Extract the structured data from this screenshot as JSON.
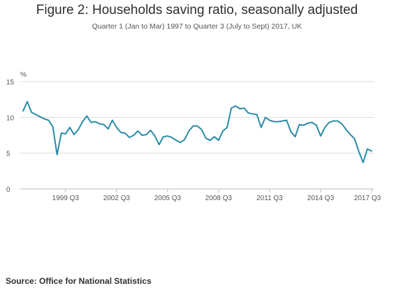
{
  "header": {
    "title": "Figure 2: Households saving ratio, seasonally adjusted",
    "subtitle": "Quarter 1 (Jan to Mar) 1997 to Quarter 3 (July to Sept) 2017, UK"
  },
  "footer": {
    "source": "Source: Office for National Statistics"
  },
  "colors": {
    "line": "#2a8ba8",
    "gridline": "#dddddd",
    "axis": "#bbbbbb"
  },
  "chart_data": {
    "type": "line",
    "title": "Figure 2: Households saving ratio, seasonally adjusted",
    "subtitle": "Quarter 1 (Jan to Mar) 1997 to Quarter 3 (July to Sept) 2017, UK",
    "ylabel": "%",
    "ylim": [
      0,
      15
    ],
    "yticks": [
      0,
      5,
      10,
      15
    ],
    "xlabels": [
      "1999 Q3",
      "2002 Q3",
      "2005 Q3",
      "2008 Q3",
      "2011 Q3",
      "2014 Q3",
      "2017 Q3"
    ],
    "grid": true,
    "x": [
      "1997 Q1",
      "1997 Q2",
      "1997 Q3",
      "1997 Q4",
      "1998 Q1",
      "1998 Q2",
      "1998 Q3",
      "1998 Q4",
      "1999 Q1",
      "1999 Q2",
      "1999 Q3",
      "1999 Q4",
      "2000 Q1",
      "2000 Q2",
      "2000 Q3",
      "2000 Q4",
      "2001 Q1",
      "2001 Q2",
      "2001 Q3",
      "2001 Q4",
      "2002 Q1",
      "2002 Q2",
      "2002 Q3",
      "2002 Q4",
      "2003 Q1",
      "2003 Q2",
      "2003 Q3",
      "2003 Q4",
      "2004 Q1",
      "2004 Q2",
      "2004 Q3",
      "2004 Q4",
      "2005 Q1",
      "2005 Q2",
      "2005 Q3",
      "2005 Q4",
      "2006 Q1",
      "2006 Q2",
      "2006 Q3",
      "2006 Q4",
      "2007 Q1",
      "2007 Q2",
      "2007 Q3",
      "2007 Q4",
      "2008 Q1",
      "2008 Q2",
      "2008 Q3",
      "2008 Q4",
      "2009 Q1",
      "2009 Q2",
      "2009 Q3",
      "2009 Q4",
      "2010 Q1",
      "2010 Q2",
      "2010 Q3",
      "2010 Q4",
      "2011 Q1",
      "2011 Q2",
      "2011 Q3",
      "2011 Q4",
      "2012 Q1",
      "2012 Q2",
      "2012 Q3",
      "2012 Q4",
      "2013 Q1",
      "2013 Q2",
      "2013 Q3",
      "2013 Q4",
      "2014 Q1",
      "2014 Q2",
      "2014 Q3",
      "2014 Q4",
      "2015 Q1",
      "2015 Q2",
      "2015 Q3",
      "2015 Q4",
      "2016 Q1",
      "2016 Q2",
      "2016 Q3",
      "2016 Q4",
      "2017 Q1",
      "2017 Q2",
      "2017 Q3"
    ],
    "series": [
      {
        "values": [
          10.9,
          12.2,
          10.7,
          10.4,
          10.1,
          9.8,
          9.6,
          8.7,
          4.8,
          7.8,
          7.7,
          8.6,
          7.6,
          8.3,
          9.4,
          10.2,
          9.3,
          9.4,
          9.1,
          9.0,
          8.4,
          9.6,
          8.6,
          7.9,
          7.8,
          7.2,
          7.5,
          8.1,
          7.5,
          7.6,
          8.2,
          7.4,
          6.2,
          7.3,
          7.4,
          7.2,
          6.8,
          6.5,
          6.9,
          8.1,
          8.8,
          8.8,
          8.3,
          7.1,
          6.8,
          7.3,
          6.8,
          8.1,
          8.6,
          11.3,
          11.6,
          11.2,
          11.3,
          10.6,
          10.5,
          10.4,
          8.6,
          10.0,
          9.6,
          9.4,
          9.4,
          9.5,
          9.6,
          8.0,
          7.3,
          9.0,
          8.9,
          9.2,
          9.3,
          8.9,
          7.4,
          8.6,
          9.3,
          9.5,
          9.5,
          9.1,
          8.3,
          7.6,
          7.0,
          5.2,
          3.7,
          5.6,
          5.3
        ]
      }
    ]
  }
}
